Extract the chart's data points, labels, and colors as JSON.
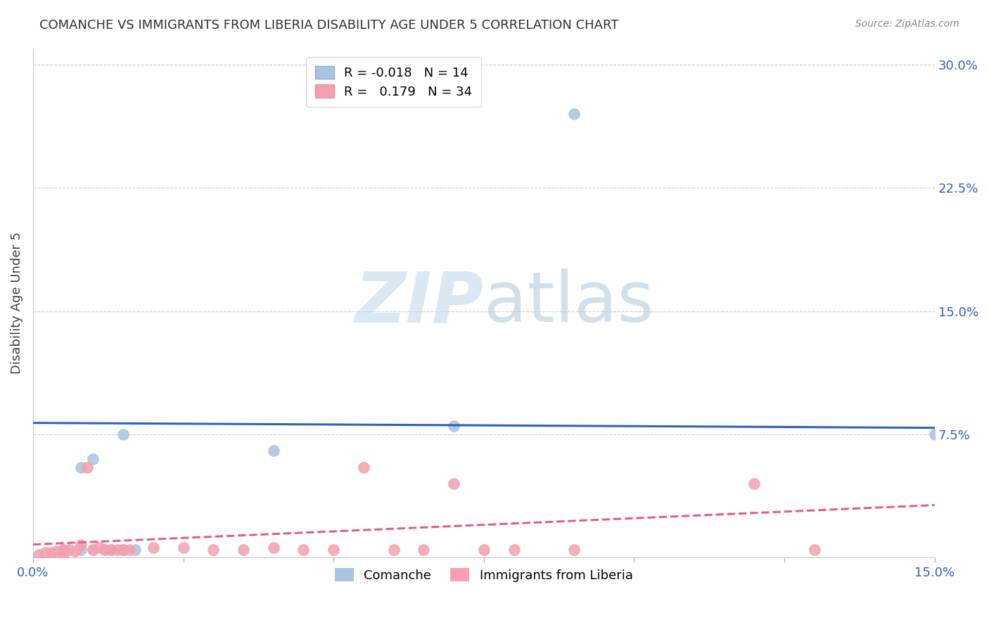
{
  "title": "COMANCHE VS IMMIGRANTS FROM LIBERIA DISABILITY AGE UNDER 5 CORRELATION CHART",
  "source": "Source: ZipAtlas.com",
  "ylabel": "Disability Age Under 5",
  "xlim": [
    0.0,
    0.15
  ],
  "ylim": [
    0.0,
    0.31
  ],
  "legend1_r": "-0.018",
  "legend1_n": "14",
  "legend2_r": "0.179",
  "legend2_n": "34",
  "comanche_color": "#a8c4e0",
  "liberia_color": "#f4a0b0",
  "line_blue": "#3060c0",
  "line_pink": "#e06080",
  "background": "#ffffff",
  "comanche_x": [
    0.005,
    0.008,
    0.008,
    0.01,
    0.01,
    0.012,
    0.013,
    0.015,
    0.015,
    0.017,
    0.04,
    0.07,
    0.09,
    0.15
  ],
  "comanche_y": [
    0.005,
    0.005,
    0.055,
    0.005,
    0.06,
    0.005,
    0.005,
    0.005,
    0.075,
    0.005,
    0.065,
    0.08,
    0.27,
    0.075
  ],
  "liberia_x": [
    0.001,
    0.002,
    0.003,
    0.004,
    0.005,
    0.005,
    0.006,
    0.007,
    0.008,
    0.009,
    0.01,
    0.011,
    0.012,
    0.013,
    0.014,
    0.015,
    0.015,
    0.016,
    0.02,
    0.025,
    0.03,
    0.035,
    0.04,
    0.045,
    0.05,
    0.055,
    0.06,
    0.065,
    0.07,
    0.075,
    0.08,
    0.09,
    0.12,
    0.13
  ],
  "liberia_y": [
    0.002,
    0.003,
    0.003,
    0.004,
    0.005,
    0.002,
    0.005,
    0.004,
    0.008,
    0.055,
    0.005,
    0.006,
    0.005,
    0.005,
    0.005,
    0.005,
    0.005,
    0.005,
    0.006,
    0.006,
    0.005,
    0.005,
    0.006,
    0.005,
    0.005,
    0.055,
    0.005,
    0.005,
    0.045,
    0.005,
    0.005,
    0.005,
    0.045,
    0.005
  ],
  "blue_line_x": [
    0.0,
    0.15
  ],
  "blue_line_y": [
    0.082,
    0.079
  ],
  "pink_line_x": [
    0.0,
    0.15
  ],
  "pink_line_y": [
    0.008,
    0.032
  ],
  "grid_color": "#cccccc",
  "watermark_zip": "ZIP",
  "watermark_atlas": "atlas",
  "marker_size": 120,
  "ytick_vals": [
    0.075,
    0.15,
    0.225,
    0.3
  ],
  "ytick_labels": [
    "7.5%",
    "15.0%",
    "22.5%",
    "30.0%"
  ]
}
